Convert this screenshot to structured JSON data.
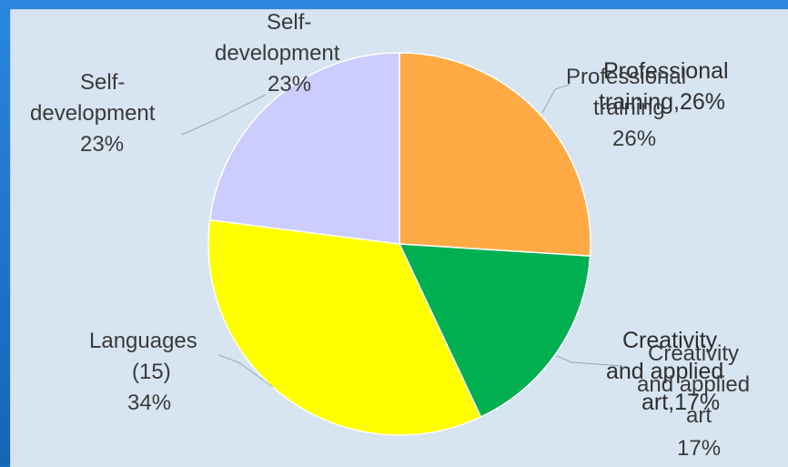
{
  "chart_data": {
    "type": "pie",
    "categories": [
      "Professional training",
      "Creativity and applied art",
      "Languages",
      "Self-development"
    ],
    "values": [
      26,
      17,
      34,
      23
    ],
    "colors": [
      "#ffaa44",
      "#00b050",
      "#ffff00",
      "#ccccff"
    ],
    "title": "",
    "start_angle_deg": 0,
    "direction": "clockwise"
  },
  "labels": {
    "professional_overlay": "Professional",
    "professional_overlay_2": "training,26%",
    "professional_1": "Professional",
    "professional_2": "training",
    "professional_pct": "26%",
    "creativity_overlay_1": "Creativity",
    "creativity_overlay_2": "and applied",
    "creativity_overlay_3": "art,17%",
    "creativity_1": "Creativity",
    "creativity_2": "and applied",
    "creativity_3": "art",
    "creativity_pct": "17%",
    "languages_1": "Languages",
    "languages_2": "(15)",
    "languages_pct": "34%",
    "selfdev_1": "Self-",
    "selfdev_2": "development",
    "selfdev_pct": "23%",
    "selfdev_overlay_1": "Self-",
    "selfdev_overlay_2": "development",
    "selfdev_overlay_3": "23%"
  }
}
